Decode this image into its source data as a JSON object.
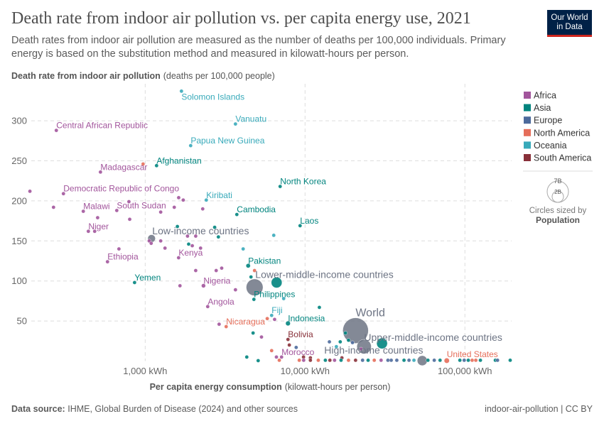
{
  "header": {
    "title": "Death rate from indoor air pollution vs. per capita energy use, 2021",
    "subtitle": "Death rates from indoor air pollution are measured as the number of deaths per 100,000 individuals. Primary energy is based on the substitution method and measured in kilowatt-hours per person.",
    "logo_line1": "Our World",
    "logo_line2": "in Data"
  },
  "footer": {
    "source_label": "Data source:",
    "source_text": "IHME, Global Burden of Disease (2024) and other sources",
    "right": "indoor-air-pollution | CC BY"
  },
  "colors": {
    "Africa": "#a2559c",
    "Asia": "#00847e",
    "Europe": "#4c6a9c",
    "North America": "#e56e5a",
    "Oceania": "#38aaba",
    "South America": "#883039",
    "Income group": "#6d7484"
  },
  "legend": {
    "items": [
      "Africa",
      "Asia",
      "Europe",
      "North America",
      "Oceania",
      "South America"
    ],
    "size_labels": [
      "7B",
      "2B"
    ],
    "size_caption": "Circles sized by",
    "size_variable": "Population"
  },
  "chart_data": {
    "type": "scatter",
    "title": "Death rate from indoor air pollution vs. per capita energy use, 2021",
    "ylabel_bold": "Death rate from indoor air pollution",
    "ylabel_unit": "(deaths per 100,000 people)",
    "xlabel_bold": "Per capita energy consumption",
    "xlabel_unit": "(kilowatt-hours per person)",
    "x_scale": "log",
    "xlim": [
      186,
      196000
    ],
    "ylim": [
      0,
      340
    ],
    "x_ticks": [
      {
        "value": 1000,
        "label": "1,000 kWh"
      },
      {
        "value": 10000,
        "label": "10,000 kWh"
      },
      {
        "value": 100000,
        "label": "100,000 kWh"
      }
    ],
    "y_ticks": [
      {
        "value": 50,
        "label": "50"
      },
      {
        "value": 100,
        "label": "100"
      },
      {
        "value": 150,
        "label": "150"
      },
      {
        "value": 200,
        "label": "200"
      },
      {
        "value": 250,
        "label": "250"
      },
      {
        "value": 300,
        "label": "300"
      }
    ],
    "grid": true,
    "legend_position": "right",
    "size_variable": "Population",
    "points": [
      {
        "label": "World",
        "region": "Income group",
        "x": 20700,
        "y": 38,
        "pop_billion": 7.9
      },
      {
        "label": "Lower-middle-income countries",
        "region": "Income group",
        "x": 4835,
        "y": 92,
        "pop_billion": 3.4
      },
      {
        "label": "Upper-middle-income countries",
        "region": "Income group",
        "x": 23400,
        "y": 18,
        "pop_billion": 2.5
      },
      {
        "label": "High-income countries",
        "region": "Income group",
        "x": 54100,
        "y": 0.5,
        "pop_billion": 1.2
      },
      {
        "label": "Low-income countries",
        "region": "Income group",
        "x": 1096,
        "y": 153,
        "pop_billion": 0.7
      },
      {
        "label": "",
        "region": "Asia",
        "x": 30300,
        "y": 22,
        "pop_billion": 1.4
      },
      {
        "label": "",
        "region": "Asia",
        "x": 6640,
        "y": 98,
        "pop_billion": 1.4
      },
      {
        "label": "Solomon Islands",
        "region": "Oceania",
        "x": 1686,
        "y": 337
      },
      {
        "label": "Vanuatu",
        "region": "Oceania",
        "x": 3670,
        "y": 296
      },
      {
        "label": "Central African Republic",
        "region": "Africa",
        "x": 278,
        "y": 288
      },
      {
        "label": "Papua New Guinea",
        "region": "Oceania",
        "x": 1925,
        "y": 269
      },
      {
        "label": "Afghanistan",
        "region": "Asia",
        "x": 1178,
        "y": 244,
        "pop_billion": 0.04
      },
      {
        "label": "Madagascar",
        "region": "Africa",
        "x": 525,
        "y": 236
      },
      {
        "label": "North Korea",
        "region": "Asia",
        "x": 6985,
        "y": 218
      },
      {
        "label": "Democratic Republic of Congo",
        "region": "Africa",
        "x": 308,
        "y": 209,
        "pop_billion": 0.1
      },
      {
        "label": "Kiribati",
        "region": "Oceania",
        "x": 2411,
        "y": 201
      },
      {
        "label": "Malawi",
        "region": "Africa",
        "x": 410,
        "y": 187
      },
      {
        "label": "South Sudan",
        "region": "Africa",
        "x": 664,
        "y": 188
      },
      {
        "label": "Cambodia",
        "region": "Asia",
        "x": 3743,
        "y": 183
      },
      {
        "label": "Laos",
        "region": "Asia",
        "x": 9310,
        "y": 169
      },
      {
        "label": "Niger",
        "region": "Africa",
        "x": 441,
        "y": 162
      },
      {
        "label": "Ethiopia",
        "region": "Africa",
        "x": 581,
        "y": 124,
        "pop_billion": 0.12
      },
      {
        "label": "Kenya",
        "region": "Africa",
        "x": 1618,
        "y": 129
      },
      {
        "label": "Pakistan",
        "region": "Asia",
        "x": 4408,
        "y": 119,
        "pop_billion": 0.23
      },
      {
        "label": "Yemen",
        "region": "Asia",
        "x": 858,
        "y": 98
      },
      {
        "label": "Nigeria",
        "region": "Africa",
        "x": 2315,
        "y": 94,
        "pop_billion": 0.21
      },
      {
        "label": "Philippines",
        "region": "Asia",
        "x": 4786,
        "y": 77,
        "pop_billion": 0.11
      },
      {
        "label": "Angola",
        "region": "Africa",
        "x": 2461,
        "y": 68
      },
      {
        "label": "Fiji",
        "region": "Oceania",
        "x": 6180,
        "y": 57
      },
      {
        "label": "Indonesia",
        "region": "Asia",
        "x": 7820,
        "y": 47,
        "pop_billion": 0.27
      },
      {
        "label": "Nicaragua",
        "region": "North America",
        "x": 3210,
        "y": 43
      },
      {
        "label": "Bolivia",
        "region": "South America",
        "x": 7820,
        "y": 27
      },
      {
        "label": "Morocco",
        "region": "Africa",
        "x": 7130,
        "y": 5
      },
      {
        "label": "United States",
        "region": "North America",
        "x": 77000,
        "y": 0.5,
        "pop_billion": 0.33
      },
      {
        "label": "",
        "region": "Africa",
        "x": 190,
        "y": 212
      },
      {
        "label": "",
        "region": "Africa",
        "x": 267,
        "y": 192
      },
      {
        "label": "",
        "region": "Africa",
        "x": 504,
        "y": 179
      },
      {
        "label": "",
        "region": "Africa",
        "x": 791,
        "y": 199
      },
      {
        "label": "",
        "region": "Africa",
        "x": 800,
        "y": 177
      },
      {
        "label": "",
        "region": "Africa",
        "x": 1520,
        "y": 192
      },
      {
        "label": "",
        "region": "Africa",
        "x": 1620,
        "y": 204
      },
      {
        "label": "",
        "region": "Africa",
        "x": 1730,
        "y": 201
      },
      {
        "label": "",
        "region": "Africa",
        "x": 2290,
        "y": 190
      },
      {
        "label": "",
        "region": "Africa",
        "x": 1250,
        "y": 186
      },
      {
        "label": "",
        "region": "Africa",
        "x": 483,
        "y": 162
      },
      {
        "label": "",
        "region": "Africa",
        "x": 685,
        "y": 140
      },
      {
        "label": "",
        "region": "Africa",
        "x": 1060,
        "y": 150
      },
      {
        "label": "",
        "region": "Africa",
        "x": 1090,
        "y": 147
      },
      {
        "label": "",
        "region": "Africa",
        "x": 1250,
        "y": 150
      },
      {
        "label": "",
        "region": "Africa",
        "x": 1330,
        "y": 141
      },
      {
        "label": "",
        "region": "Africa",
        "x": 1840,
        "y": 156
      },
      {
        "label": "",
        "region": "Africa",
        "x": 2070,
        "y": 156
      },
      {
        "label": "",
        "region": "Africa",
        "x": 1970,
        "y": 144
      },
      {
        "label": "",
        "region": "Africa",
        "x": 2220,
        "y": 141
      },
      {
        "label": "",
        "region": "Africa",
        "x": 2070,
        "y": 113
      },
      {
        "label": "",
        "region": "Africa",
        "x": 2780,
        "y": 113
      },
      {
        "label": "",
        "region": "Africa",
        "x": 3010,
        "y": 116
      },
      {
        "label": "",
        "region": "Africa",
        "x": 3670,
        "y": 89
      },
      {
        "label": "",
        "region": "Africa",
        "x": 2900,
        "y": 46
      },
      {
        "label": "",
        "region": "Africa",
        "x": 6450,
        "y": 52
      },
      {
        "label": "",
        "region": "Africa",
        "x": 5340,
        "y": 30
      },
      {
        "label": "",
        "region": "Africa",
        "x": 6620,
        "y": 5
      },
      {
        "label": "",
        "region": "Africa",
        "x": 1650,
        "y": 94
      },
      {
        "label": "",
        "region": "Africa",
        "x": 22400,
        "y": 15
      },
      {
        "label": "",
        "region": "North America",
        "x": 970,
        "y": 246
      },
      {
        "label": "",
        "region": "North America",
        "x": 5800,
        "y": 53
      },
      {
        "label": "",
        "region": "North America",
        "x": 4830,
        "y": 113
      },
      {
        "label": "",
        "region": "North America",
        "x": 6180,
        "y": 13
      },
      {
        "label": "",
        "region": "North America",
        "x": 6900,
        "y": 1
      },
      {
        "label": "",
        "region": "Asia",
        "x": 1590,
        "y": 168
      },
      {
        "label": "",
        "region": "Asia",
        "x": 1870,
        "y": 146
      },
      {
        "label": "",
        "region": "Asia",
        "x": 2720,
        "y": 167
      },
      {
        "label": "",
        "region": "Asia",
        "x": 2870,
        "y": 155
      },
      {
        "label": "",
        "region": "Asia",
        "x": 4590,
        "y": 105
      },
      {
        "label": "",
        "region": "Asia",
        "x": 4730,
        "y": 35
      },
      {
        "label": "",
        "region": "Asia",
        "x": 4320,
        "y": 5
      },
      {
        "label": "",
        "region": "Asia",
        "x": 5090,
        "y": 0.5
      },
      {
        "label": "",
        "region": "Asia",
        "x": 12290,
        "y": 67
      },
      {
        "label": "",
        "region": "Asia",
        "x": 17900,
        "y": 35
      },
      {
        "label": "",
        "region": "Asia",
        "x": 18700,
        "y": 26
      },
      {
        "label": "",
        "region": "Asia",
        "x": 16600,
        "y": 24
      },
      {
        "label": "",
        "region": "Oceania",
        "x": 4100,
        "y": 140
      },
      {
        "label": "",
        "region": "Oceania",
        "x": 6370,
        "y": 157
      },
      {
        "label": "",
        "region": "Oceania",
        "x": 7350,
        "y": 78
      },
      {
        "label": "",
        "region": "Oceania",
        "x": 15700,
        "y": 18
      },
      {
        "label": "",
        "region": "Europe",
        "x": 8800,
        "y": 17
      },
      {
        "label": "",
        "region": "Europe",
        "x": 14200,
        "y": 24
      },
      {
        "label": "",
        "region": "Europe",
        "x": 19800,
        "y": 23
      },
      {
        "label": "",
        "region": "South America",
        "x": 7970,
        "y": 20
      },
      {
        "label": "",
        "region": "South America",
        "x": 9780,
        "y": 5
      },
      {
        "label": "",
        "region": "South America",
        "x": 10800,
        "y": 4
      },
      {
        "label": "",
        "region": "South America",
        "x": 17000,
        "y": 4
      },
      {
        "label": "",
        "region": "North America",
        "x": 9200,
        "y": 1
      },
      {
        "label": "",
        "region": "Africa",
        "x": 9800,
        "y": 1
      },
      {
        "label": "",
        "region": "South America",
        "x": 10800,
        "y": 1
      },
      {
        "label": "",
        "region": "North America",
        "x": 12100,
        "y": 1
      },
      {
        "label": "",
        "region": "Asia",
        "x": 13400,
        "y": 1
      },
      {
        "label": "",
        "region": "South America",
        "x": 14300,
        "y": 1
      },
      {
        "label": "",
        "region": "Africa",
        "x": 15300,
        "y": 1
      },
      {
        "label": "",
        "region": "Asia",
        "x": 16800,
        "y": 1
      },
      {
        "label": "",
        "region": "North America",
        "x": 18700,
        "y": 1
      },
      {
        "label": "",
        "region": "South America",
        "x": 20700,
        "y": 1
      },
      {
        "label": "",
        "region": "Europe",
        "x": 22900,
        "y": 1
      },
      {
        "label": "",
        "region": "Asia",
        "x": 24800,
        "y": 1
      },
      {
        "label": "",
        "region": "North America",
        "x": 27100,
        "y": 1
      },
      {
        "label": "",
        "region": "Africa",
        "x": 29900,
        "y": 1
      },
      {
        "label": "",
        "region": "Europe",
        "x": 33000,
        "y": 1
      },
      {
        "label": "",
        "region": "Europe",
        "x": 34600,
        "y": 1
      },
      {
        "label": "",
        "region": "Europe",
        "x": 37500,
        "y": 1
      },
      {
        "label": "",
        "region": "Asia",
        "x": 41600,
        "y": 1
      },
      {
        "label": "",
        "region": "Europe",
        "x": 44700,
        "y": 1
      },
      {
        "label": "",
        "region": "Oceania",
        "x": 48000,
        "y": 1
      },
      {
        "label": "",
        "region": "Asia",
        "x": 58700,
        "y": 1
      },
      {
        "label": "",
        "region": "Europe",
        "x": 64300,
        "y": 1
      },
      {
        "label": "",
        "region": "Asia",
        "x": 69900,
        "y": 1
      },
      {
        "label": "",
        "region": "Asia",
        "x": 93000,
        "y": 1
      },
      {
        "label": "",
        "region": "Europe",
        "x": 99000,
        "y": 1
      },
      {
        "label": "",
        "region": "Asia",
        "x": 105000,
        "y": 1
      },
      {
        "label": "",
        "region": "North America",
        "x": 111000,
        "y": 1
      },
      {
        "label": "",
        "region": "North America",
        "x": 117000,
        "y": 1
      },
      {
        "label": "",
        "region": "Asia",
        "x": 125000,
        "y": 1
      },
      {
        "label": "",
        "region": "Asia",
        "x": 155000,
        "y": 1
      },
      {
        "label": "",
        "region": "Europe",
        "x": 160000,
        "y": 1
      },
      {
        "label": "",
        "region": "Asia",
        "x": 192000,
        "y": 1
      }
    ]
  }
}
